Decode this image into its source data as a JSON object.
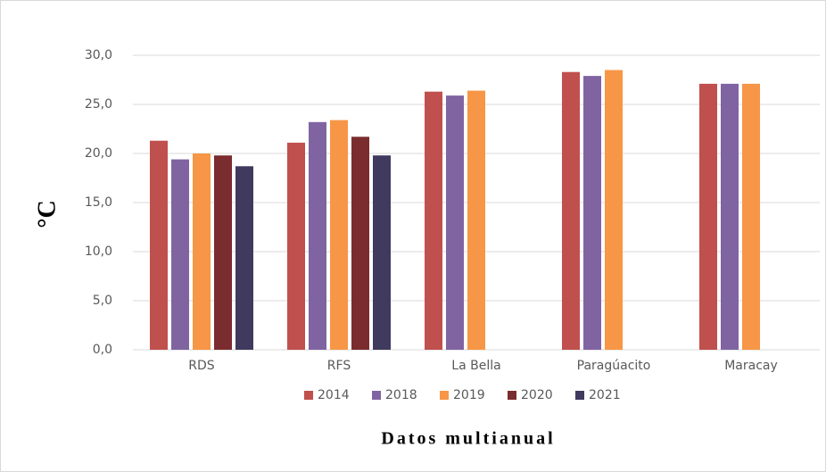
{
  "chart_data": {
    "type": "bar",
    "title": "Datos multianual",
    "y_label": "°C",
    "categories": [
      "RDS",
      "RFS",
      "La Bella",
      "Paragúacito",
      "Maracay"
    ],
    "series": [
      {
        "name": "2014",
        "color": "#c0504d",
        "values": [
          21.3,
          21.1,
          26.3,
          28.3,
          27.1
        ]
      },
      {
        "name": "2018",
        "color": "#8064a2",
        "values": [
          19.4,
          23.2,
          25.9,
          27.9,
          27.1
        ]
      },
      {
        "name": "2019",
        "color": "#f79646",
        "values": [
          20.0,
          23.4,
          26.4,
          28.5,
          27.1
        ]
      },
      {
        "name": "2020",
        "color": "#7b2c2e",
        "values": [
          19.8,
          21.7,
          null,
          null,
          null
        ]
      },
      {
        "name": "2021",
        "color": "#3f3a5e",
        "values": [
          18.7,
          19.8,
          null,
          null,
          null
        ]
      }
    ],
    "ylim": [
      0,
      30
    ],
    "yticks": [
      {
        "value": 0,
        "label": "0,0"
      },
      {
        "value": 5,
        "label": "5,0"
      },
      {
        "value": 10,
        "label": "10,0"
      },
      {
        "value": 15,
        "label": "15,0"
      },
      {
        "value": 20,
        "label": "20,0"
      },
      {
        "value": 25,
        "label": "25,0"
      },
      {
        "value": 30,
        "label": "30,0"
      }
    ],
    "grid": true,
    "legend": "bottom"
  }
}
